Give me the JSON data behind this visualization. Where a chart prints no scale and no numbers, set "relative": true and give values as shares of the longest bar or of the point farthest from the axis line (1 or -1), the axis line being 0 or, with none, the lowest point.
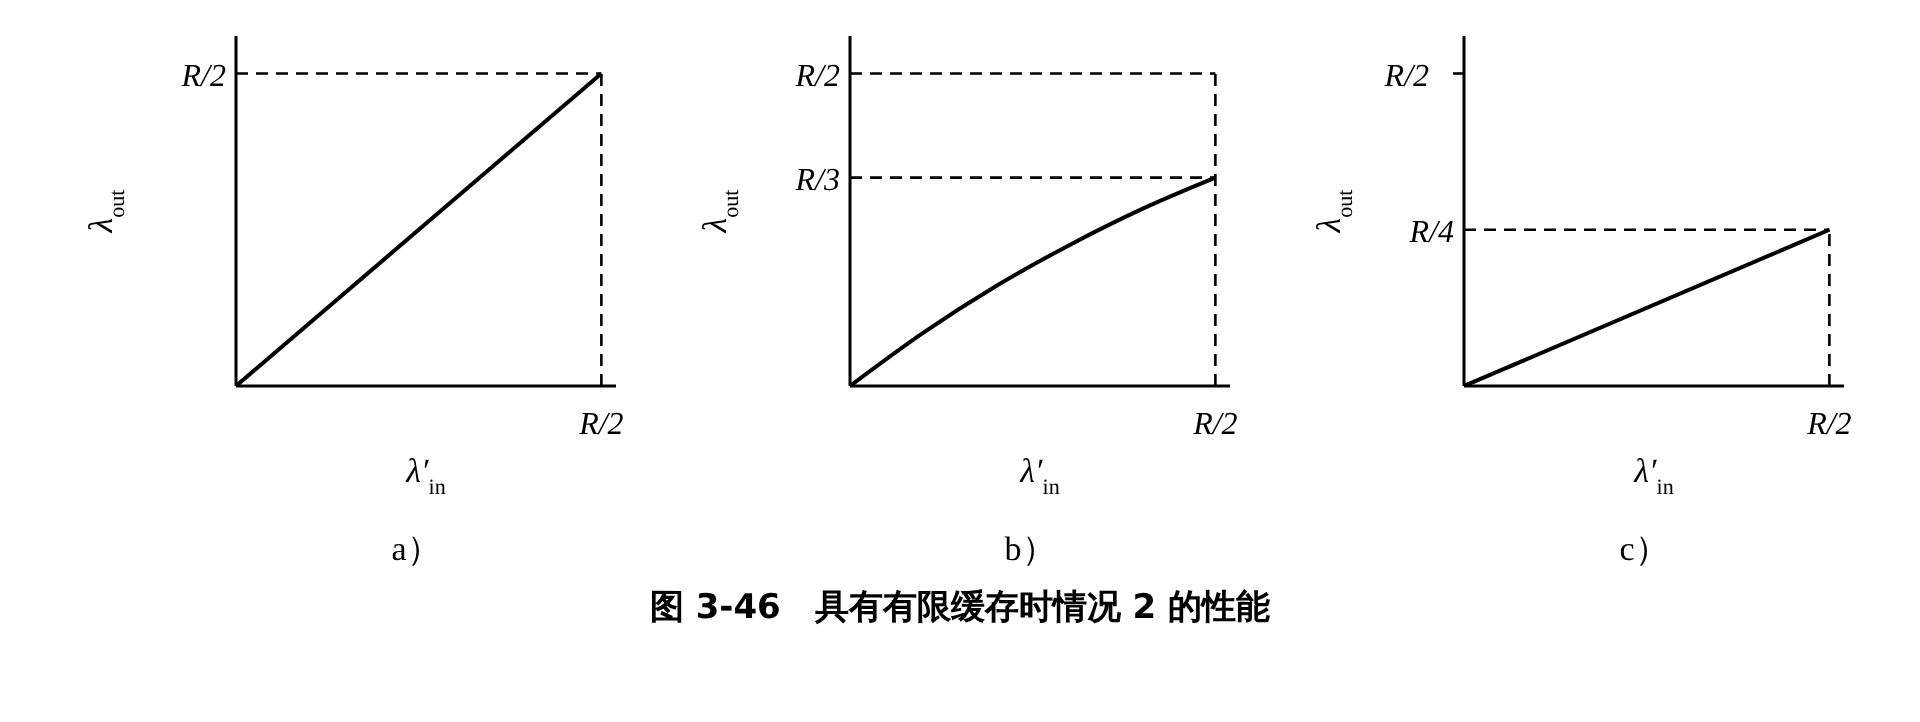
{
  "chart_data": [
    {
      "type": "line",
      "relative": true,
      "xlabel": "λ′$_{in}$",
      "ylabel": "λ$_{out}$",
      "categories": [
        null,
        null
      ],
      "annotations": [
        "a）",
        "R/2",
        "图 3-46　具有有限缓存时情况 2 的性能"
      ],
      "series": [
        {
          "color": "#000000",
          "values": [
            0,
            1
          ]
        }
      ],
      "ref_lines": [
        {
          "axis": "y",
          "value": 1,
          "label": "R/2",
          "line_style": "dashed"
        }
      ],
      "grid": false,
      "legend": false,
      "marker": "none",
      "line_style": "solid"
    },
    {
      "type": "line",
      "relative": true,
      "xlabel": "λ′$_{in}$",
      "ylabel": "λ$_{out}$",
      "categories": [
        null,
        null,
        null,
        null,
        null,
        null
      ],
      "annotations": [
        "b）",
        "R/2"
      ],
      "series": [
        {
          "color": "#000000",
          "values": [
            0,
            0.255,
            0.48,
            0.676,
            0.85,
            1
          ]
        }
      ],
      "ref_lines": [
        {
          "axis": "y",
          "value": 1.5,
          "label": "R/2",
          "line_style": "dashed"
        },
        {
          "axis": "y",
          "value": 1,
          "label": "R/3",
          "line_style": "dashed"
        }
      ],
      "grid": false,
      "legend": false,
      "marker": "none",
      "line_style": "solid"
    },
    {
      "type": "line",
      "relative": true,
      "xlabel": "λ′$_{in}$",
      "ylabel": "λ$_{out}$",
      "categories": [
        null,
        null
      ],
      "annotations": [
        "c）",
        "R/2"
      ],
      "series": [
        {
          "color": "#000000",
          "values": [
            0,
            1
          ]
        }
      ],
      "ref_lines": [
        {
          "axis": "y",
          "value": 2,
          "label": "R/2",
          "line_style": "solid"
        },
        {
          "axis": "y",
          "value": 1,
          "label": "R/4",
          "line_style": "dashed"
        }
      ],
      "grid": false,
      "legend": false,
      "marker": "none",
      "line_style": "solid"
    }
  ]
}
